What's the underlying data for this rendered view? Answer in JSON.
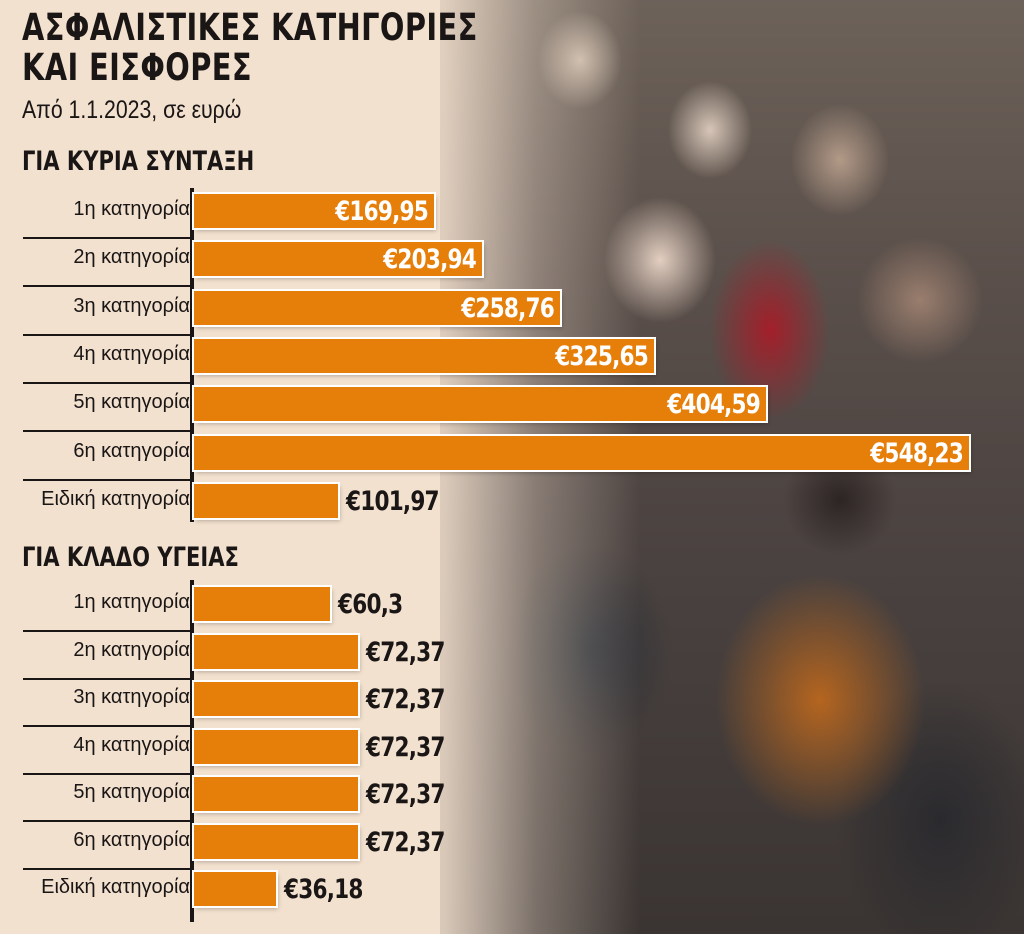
{
  "header": {
    "title_line1": "ΑΣΦΑΛΙΣΤΙΚΕΣ ΚΑΤΗΓΟΡΙΕΣ",
    "title_line2": "ΚΑΙ ΕΙΣΦΟΡΕΣ",
    "subtitle": "Από 1.1.2023, σε ευρώ"
  },
  "colors": {
    "bar": "#e67e0a",
    "background": "#f3e1cf",
    "text": "#1a1616"
  },
  "sections": [
    {
      "title": "ΓΙΑ ΚΥΡΙΑ ΣΥΝΤΑΞΗ",
      "rows": [
        {
          "label": "1η κατηγορία",
          "value_label": "€169,95"
        },
        {
          "label": "2η κατηγορία",
          "value_label": "€203,94"
        },
        {
          "label": "3η κατηγορία",
          "value_label": "€258,76"
        },
        {
          "label": "4η κατηγορία",
          "value_label": "€325,65"
        },
        {
          "label": "5η κατηγορία",
          "value_label": "€404,59"
        },
        {
          "label": "6η κατηγορία",
          "value_label": "€548,23"
        },
        {
          "label": "Ειδική κατηγορία",
          "value_label": "€101,97"
        }
      ]
    },
    {
      "title": "ΓΙΑ ΚΛΑΔΟ ΥΓΕΙΑΣ",
      "rows": [
        {
          "label": "1η κατηγορία",
          "value_label": "€60,3"
        },
        {
          "label": "2η κατηγορία",
          "value_label": "€72,37"
        },
        {
          "label": "3η κατηγορία",
          "value_label": "€72,37"
        },
        {
          "label": "4η κατηγορία",
          "value_label": "€72,37"
        },
        {
          "label": "5η κατηγορία",
          "value_label": "€72,37"
        },
        {
          "label": "6η κατηγορία",
          "value_label": "€72,37"
        },
        {
          "label": "Ειδική κατηγορία",
          "value_label": "€36,18"
        }
      ]
    }
  ],
  "chart_data": [
    {
      "type": "bar",
      "orientation": "horizontal",
      "title": "ΓΙΑ ΚΥΡΙΑ ΣΥΝΤΑΞΗ",
      "subtitle": "Από 1.1.2023, σε ευρώ",
      "categories": [
        "1η κατηγορία",
        "2η κατηγορία",
        "3η κατηγορία",
        "4η κατηγορία",
        "5η κατηγορία",
        "6η κατηγορία",
        "Ειδική κατηγορία"
      ],
      "values": [
        169.95,
        203.94,
        258.76,
        325.65,
        404.59,
        548.23,
        101.97
      ],
      "xlabel": "",
      "ylabel": "",
      "grid": false
    },
    {
      "type": "bar",
      "orientation": "horizontal",
      "title": "ΓΙΑ ΚΛΑΔΟ ΥΓΕΙΑΣ",
      "subtitle": "Από 1.1.2023, σε ευρώ",
      "categories": [
        "1η κατηγορία",
        "2η κατηγορία",
        "3η κατηγορία",
        "4η κατηγορία",
        "5η κατηγορία",
        "6η κατηγορία",
        "Ειδική κατηγορία"
      ],
      "values": [
        60.3,
        72.37,
        72.37,
        72.37,
        72.37,
        72.37,
        36.18
      ],
      "xlabel": "",
      "ylabel": "",
      "grid": false
    }
  ]
}
